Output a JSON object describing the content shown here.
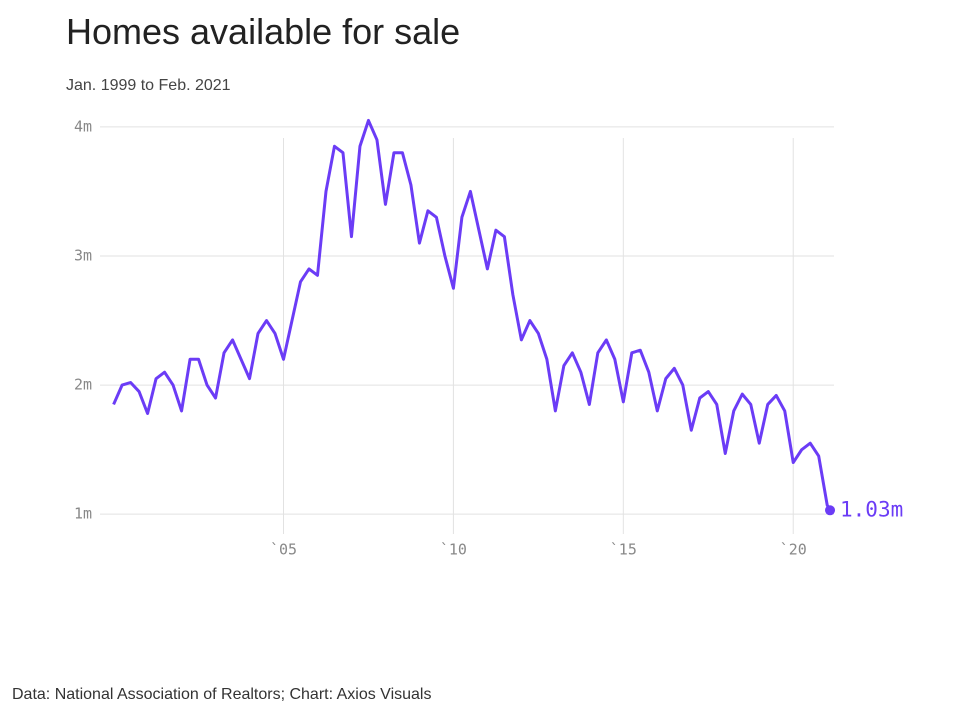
{
  "chart_data": {
    "type": "line",
    "title": "Homes available for sale",
    "subtitle": "Jan. 1999 to Feb. 2021",
    "source": "Data: National Association of Realtors; Chart: Axios Visuals",
    "xlim": [
      1999.6,
      2021.2
    ],
    "ylim": [
      0.8,
      4.1
    ],
    "xticks": [
      {
        "value": 2005,
        "label": "`05"
      },
      {
        "value": 2010,
        "label": "`10"
      },
      {
        "value": 2015,
        "label": "`15"
      },
      {
        "value": 2020,
        "label": "`20"
      }
    ],
    "yticks": [
      {
        "value": 1,
        "label": "1m"
      },
      {
        "value": 2,
        "label": "2m"
      },
      {
        "value": 3,
        "label": "3m"
      },
      {
        "value": 4,
        "label": "4m"
      }
    ],
    "grid": true,
    "series": [
      {
        "name": "Homes available for sale",
        "color": "#6b3cf6",
        "x": [
          2000,
          2000.25,
          2000.5,
          2000.75,
          2001,
          2001.25,
          2001.5,
          2001.75,
          2002,
          2002.25,
          2002.5,
          2002.75,
          2003,
          2003.25,
          2003.5,
          2003.75,
          2004,
          2004.25,
          2004.5,
          2004.75,
          2005,
          2005.25,
          2005.5,
          2005.75,
          2006,
          2006.25,
          2006.5,
          2006.75,
          2007,
          2007.25,
          2007.5,
          2007.75,
          2008,
          2008.25,
          2008.5,
          2008.75,
          2009,
          2009.25,
          2009.5,
          2009.75,
          2010,
          2010.25,
          2010.5,
          2010.75,
          2011,
          2011.25,
          2011.5,
          2011.75,
          2012,
          2012.25,
          2012.5,
          2012.75,
          2013,
          2013.25,
          2013.5,
          2013.75,
          2014,
          2014.25,
          2014.5,
          2014.75,
          2015,
          2015.25,
          2015.5,
          2015.75,
          2016,
          2016.25,
          2016.5,
          2016.75,
          2017,
          2017.25,
          2017.5,
          2017.75,
          2018,
          2018.25,
          2018.5,
          2018.75,
          2019,
          2019.25,
          2019.5,
          2019.75,
          2020,
          2020.25,
          2020.5,
          2020.75,
          2021,
          2021.083
        ],
        "values": [
          1.85,
          2.0,
          2.02,
          1.95,
          1.78,
          2.05,
          2.1,
          2.0,
          1.8,
          2.2,
          2.2,
          2.0,
          1.9,
          2.25,
          2.35,
          2.2,
          2.05,
          2.4,
          2.5,
          2.4,
          2.2,
          2.5,
          2.8,
          2.9,
          2.85,
          3.5,
          3.85,
          3.8,
          3.15,
          3.85,
          4.05,
          3.9,
          3.4,
          3.8,
          3.8,
          3.55,
          3.1,
          3.35,
          3.3,
          3.0,
          2.75,
          3.3,
          3.5,
          3.2,
          2.9,
          3.2,
          3.15,
          2.7,
          2.35,
          2.5,
          2.4,
          2.2,
          1.8,
          2.15,
          2.25,
          2.1,
          1.85,
          2.25,
          2.35,
          2.2,
          1.87,
          2.25,
          2.27,
          2.1,
          1.8,
          2.05,
          2.13,
          2.0,
          1.65,
          1.9,
          1.95,
          1.85,
          1.47,
          1.8,
          1.93,
          1.85,
          1.55,
          1.85,
          1.92,
          1.8,
          1.4,
          1.5,
          1.55,
          1.45,
          1.07,
          1.03
        ],
        "value_labels": [
          null,
          null,
          null,
          null,
          null,
          null,
          null,
          null,
          null,
          null,
          null,
          null,
          null,
          null,
          null,
          null,
          null,
          null,
          null,
          null,
          null,
          null,
          null,
          null,
          null,
          null,
          null,
          null,
          null,
          null,
          null,
          null,
          null,
          null,
          null,
          null,
          null,
          null,
          null,
          null,
          null,
          null,
          null,
          null,
          null,
          null,
          null,
          null,
          null,
          null,
          null,
          null,
          null,
          null,
          null,
          null,
          null,
          null,
          null,
          null,
          null,
          null,
          null,
          null,
          null,
          null,
          null,
          null,
          null,
          null,
          null,
          null,
          null,
          null,
          null,
          null,
          null,
          null,
          null,
          null,
          null,
          null,
          null,
          null,
          null,
          "1.03m"
        ]
      }
    ]
  }
}
